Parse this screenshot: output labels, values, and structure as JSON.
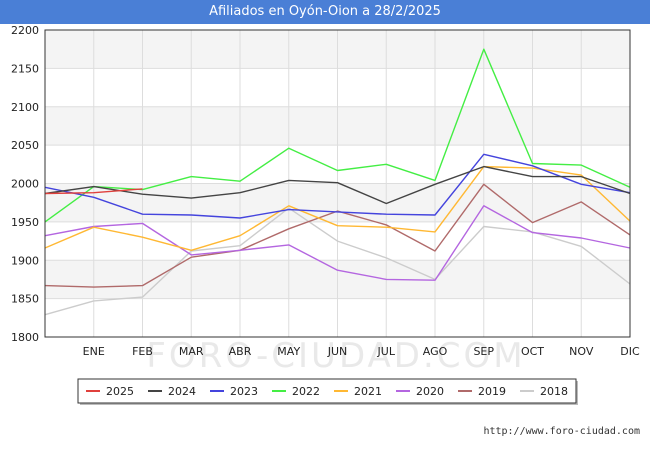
{
  "header": {
    "title": "Afiliados en Oyón-Oion a 28/2/2025"
  },
  "footer": {
    "source": "http://www.foro-ciudad.com"
  },
  "watermark": "FORO-CIUDAD.COM",
  "chart_data": {
    "type": "line",
    "title": "Afiliados en Oyón-Oion a 28/2/2025",
    "xlabel": "",
    "ylabel": "",
    "categories": [
      "ENE",
      "FEB",
      "MAR",
      "ABR",
      "MAY",
      "JUN",
      "JUL",
      "AGO",
      "SEP",
      "OCT",
      "NOV",
      "DIC"
    ],
    "ylim": [
      1800,
      2200
    ],
    "yticks": [
      1800,
      1850,
      1900,
      1950,
      2000,
      2050,
      2100,
      2150,
      2200
    ],
    "grid": true,
    "legend_position": "bottom",
    "series": [
      {
        "name": "2025",
        "color": "#e0403c",
        "x": [
          0,
          1,
          2
        ],
        "values": [
          1987,
          1988,
          1993
        ]
      },
      {
        "name": "2024",
        "color": "#444444",
        "x": [
          0,
          1,
          2,
          3,
          4,
          5,
          6,
          7,
          8,
          9,
          10,
          11,
          12
        ],
        "values": [
          1987,
          1996,
          1986,
          1981,
          1988,
          2004,
          2001,
          1974,
          1999,
          2022,
          2009,
          2009,
          1987
        ]
      },
      {
        "name": "2023",
        "color": "#4444dd",
        "x": [
          0,
          1,
          2,
          3,
          4,
          5,
          6,
          7,
          8,
          9,
          10,
          11,
          12
        ],
        "values": [
          1995,
          1982,
          1960,
          1959,
          1955,
          1966,
          1963,
          1960,
          1959,
          2038,
          2023,
          1999,
          1988
        ]
      },
      {
        "name": "2022",
        "color": "#44ee44",
        "x": [
          0,
          1,
          2,
          3,
          4,
          5,
          6,
          7,
          8,
          9,
          10,
          11,
          12
        ],
        "values": [
          1950,
          1996,
          1992,
          2009,
          2003,
          2046,
          2017,
          2025,
          2004,
          2175,
          2026,
          2024,
          1995
        ]
      },
      {
        "name": "2021",
        "color": "#ffb833",
        "x": [
          0,
          1,
          2,
          3,
          4,
          5,
          6,
          7,
          8,
          9,
          10,
          11,
          12
        ],
        "values": [
          1916,
          1943,
          1930,
          1913,
          1932,
          1971,
          1945,
          1943,
          1937,
          2022,
          2020,
          2011,
          1951
        ]
      },
      {
        "name": "2020",
        "color": "#b466e0",
        "x": [
          0,
          1,
          2,
          3,
          4,
          5,
          6,
          7,
          8,
          9,
          10,
          11,
          12
        ],
        "values": [
          1932,
          1944,
          1948,
          1907,
          1913,
          1920,
          1887,
          1875,
          1874,
          1971,
          1936,
          1929,
          1916
        ]
      },
      {
        "name": "2019",
        "color": "#b06a6a",
        "x": [
          0,
          1,
          2,
          3,
          4,
          5,
          6,
          7,
          8,
          9,
          10,
          11,
          12
        ],
        "values": [
          1867,
          1865,
          1867,
          1904,
          1913,
          1941,
          1964,
          1946,
          1912,
          1999,
          1949,
          1976,
          1933
        ]
      },
      {
        "name": "2018",
        "color": "#cccccc",
        "x": [
          0,
          1,
          2,
          3,
          4,
          5,
          6,
          7,
          8,
          9,
          10,
          11,
          12
        ],
        "values": [
          1829,
          1847,
          1852,
          1912,
          1919,
          1968,
          1925,
          1903,
          1875,
          1944,
          1937,
          1918,
          1869
        ]
      }
    ]
  }
}
